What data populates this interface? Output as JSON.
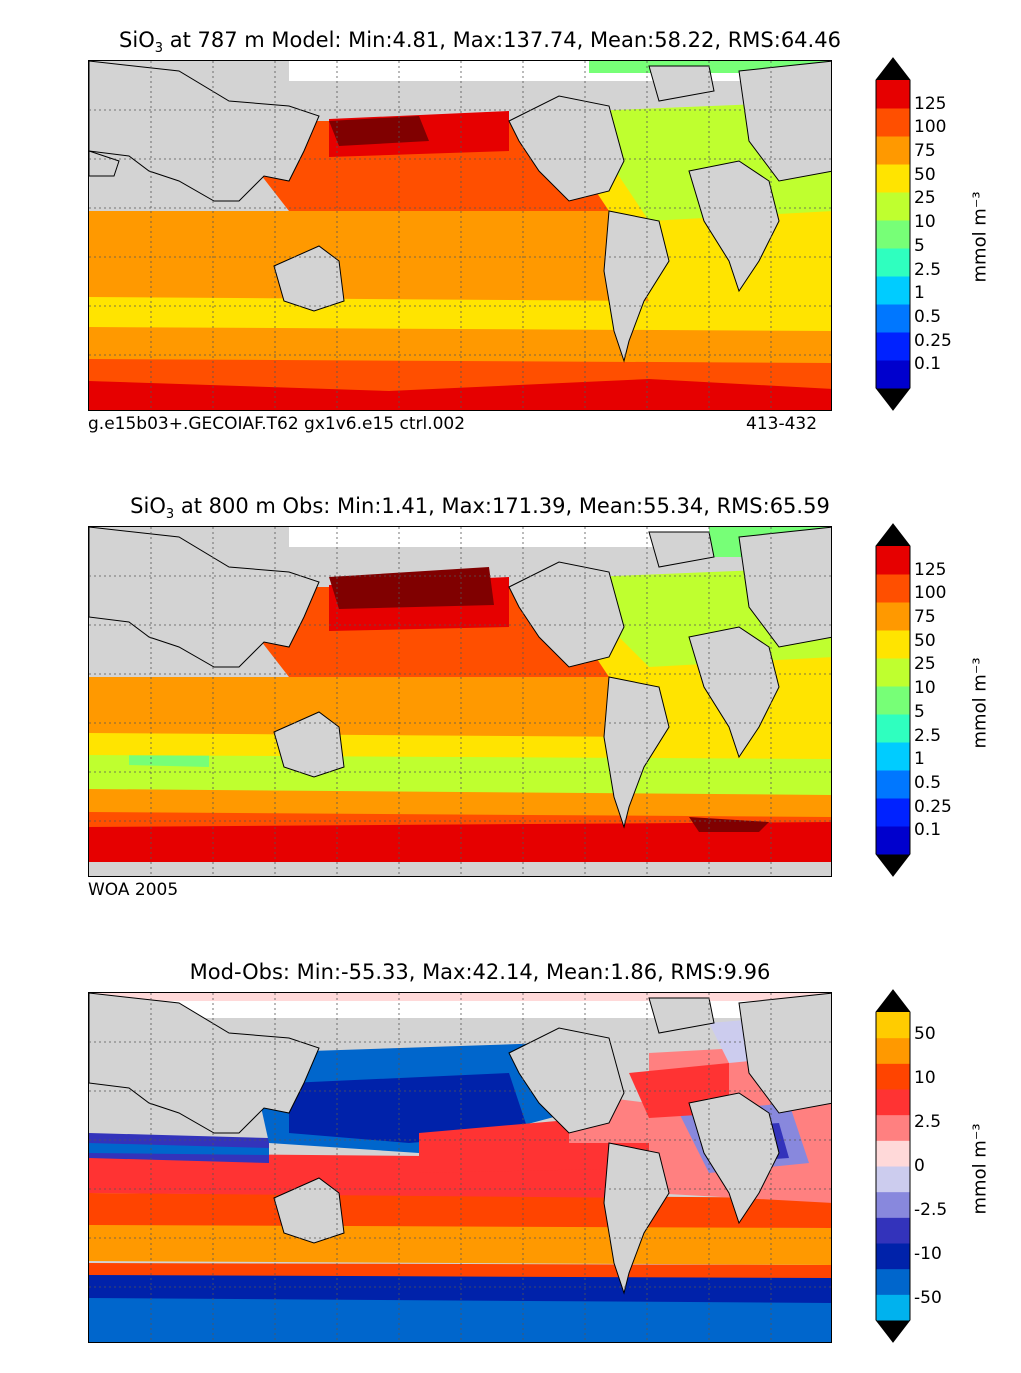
{
  "panels": [
    {
      "id": "model",
      "title": {
        "pre": "SiO",
        "sub": "3",
        "post": " at 787 m Model: Min:4.81, Max:137.74, Mean:58.22, RMS:64.46"
      },
      "caption_left": "g.e15b03+.GECOIAF.T62 gx1v6.e15 ctrl.002",
      "caption_right": "413-432",
      "colorbar": {
        "ticks": [
          "0.1",
          "0.25",
          "0.5",
          "1",
          "2.5",
          "5",
          "10",
          "25",
          "50",
          "75",
          "100",
          "125"
        ],
        "colors": [
          "#00007f",
          "#0000cd",
          "#0022ff",
          "#0077ff",
          "#00ccff",
          "#2fffbf",
          "#77ff77",
          "#bfff2f",
          "#ffe400",
          "#ff9900",
          "#ff4f00",
          "#e60000",
          "#800000"
        ],
        "unit": "mmol m⁻³"
      }
    },
    {
      "id": "obs",
      "title": {
        "pre": "SiO",
        "sub": "3",
        "post": " at 800 m Obs: Min:1.41, Max:171.39, Mean:55.34, RMS:65.59"
      },
      "caption_left": "WOA 2005",
      "caption_right": "",
      "colorbar": {
        "ticks": [
          "0.1",
          "0.25",
          "0.5",
          "1",
          "2.5",
          "5",
          "10",
          "25",
          "50",
          "75",
          "100",
          "125"
        ],
        "colors": [
          "#00007f",
          "#0000cd",
          "#0022ff",
          "#0077ff",
          "#00ccff",
          "#2fffbf",
          "#77ff77",
          "#bfff2f",
          "#ffe400",
          "#ff9900",
          "#ff4f00",
          "#e60000",
          "#800000"
        ],
        "unit": "mmol m⁻³"
      }
    },
    {
      "id": "diff",
      "title": {
        "pre": "Mod-Obs: Min:-55.33, Max:42.14, Mean:1.86, RMS:9.96",
        "sub": "",
        "post": ""
      },
      "caption_left": "",
      "caption_right": "",
      "colorbar": {
        "ticks": [
          "-50",
          "",
          "-10",
          "",
          "-2.5",
          "",
          "0",
          "",
          "2.5",
          "",
          "10",
          "",
          "50"
        ],
        "colors": [
          "#00ffff",
          "#00b2ee",
          "#0066cc",
          "#0022aa",
          "#3333bb",
          "#8888dd",
          "#ccccee",
          "#ffd9d9",
          "#ff8080",
          "#ff3333",
          "#ff4400",
          "#ff9900",
          "#ffcc00",
          "#ffff00"
        ],
        "unit": "mmol m⁻³"
      }
    }
  ],
  "map_colors": {
    "land": "#d3d3d3",
    "missing": "#ffffff",
    "coast": "#000000"
  }
}
